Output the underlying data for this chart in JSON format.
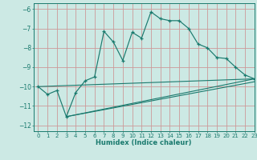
{
  "xlabel": "Humidex (Indice chaleur)",
  "bg_color": "#cce9e4",
  "grid_color": "#cc9999",
  "line_color": "#1a7a6e",
  "xlim": [
    -0.5,
    23
  ],
  "ylim": [
    -12.3,
    -5.7
  ],
  "yticks": [
    -12,
    -11,
    -10,
    -9,
    -8,
    -7,
    -6
  ],
  "xticks": [
    0,
    1,
    2,
    3,
    4,
    5,
    6,
    7,
    8,
    9,
    10,
    11,
    12,
    13,
    14,
    15,
    16,
    17,
    18,
    19,
    20,
    21,
    22,
    23
  ],
  "main_x": [
    0,
    1,
    2,
    3,
    4,
    5,
    6,
    7,
    8,
    9,
    10,
    11,
    12,
    13,
    14,
    15,
    16,
    17,
    18,
    19,
    20,
    21,
    22,
    23
  ],
  "main_y": [
    -10.0,
    -10.4,
    -10.2,
    -11.55,
    -10.3,
    -9.7,
    -9.5,
    -7.15,
    -7.7,
    -8.65,
    -7.2,
    -7.5,
    -6.15,
    -6.5,
    -6.6,
    -6.6,
    -7.0,
    -7.8,
    -8.0,
    -8.5,
    -8.55,
    -9.0,
    -9.4,
    -9.6
  ],
  "line1_x": [
    0,
    23
  ],
  "line1_y": [
    -10.0,
    -9.6
  ],
  "line2_x": [
    3,
    23
  ],
  "line2_y": [
    -11.55,
    -9.6
  ],
  "line3_x": [
    3,
    23
  ],
  "line3_y": [
    -11.55,
    -9.75
  ]
}
